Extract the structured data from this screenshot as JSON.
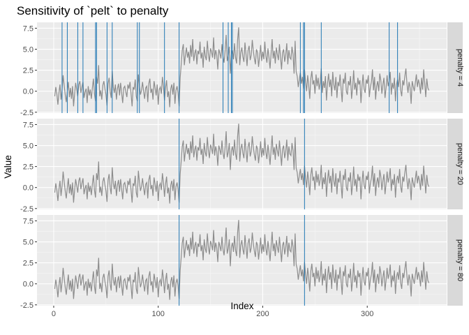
{
  "chart_data": {
    "type": "line",
    "title": "Sensitivity of `pelt` to penalty",
    "xlabel": "Index",
    "ylabel": "Value",
    "xlim": [
      -16,
      376
    ],
    "ylim": [
      -2.6,
      8.2
    ],
    "x_ticks": [
      0,
      100,
      200,
      300
    ],
    "y_ticks": [
      -2.5,
      0.0,
      2.5,
      5.0,
      7.5
    ],
    "y_tick_labels": [
      "-2.5",
      "0.0",
      "2.5",
      "5.0",
      "7.5"
    ],
    "grid": true,
    "series": [
      {
        "x_start": 1,
        "x_step": 1,
        "color": "#8c8c8c",
        "values": [
          -0.6,
          0.5,
          -0.3,
          -1.6,
          -0.2,
          0.8,
          -1.0,
          0.2,
          1.9,
          0.7,
          -0.4,
          -1.3,
          0.0,
          1.1,
          -0.7,
          0.4,
          -0.9,
          0.6,
          -1.8,
          -0.3,
          1.0,
          0.2,
          -0.6,
          0.8,
          1.2,
          -0.2,
          0.5,
          1.1,
          -0.8,
          -0.1,
          0.3,
          -1.4,
          0.6,
          -0.5,
          0.2,
          -0.9,
          0.4,
          1.5,
          -0.3,
          -1.2,
          1.7,
          0.9,
          3.1,
          -0.6,
          0.1,
          -1.0,
          0.7,
          1.2,
          0.3,
          -0.4,
          -1.7,
          0.9,
          1.6,
          0.0,
          -0.8,
          2.4,
          0.5,
          -0.2,
          0.8,
          -1.0,
          0.3,
          0.9,
          -0.5,
          1.0,
          -0.2,
          -1.4,
          0.4,
          0.6,
          -0.1,
          -0.7,
          0.8,
          0.3,
          1.1,
          -0.3,
          -1.8,
          0.5,
          0.2,
          1.4,
          -0.6,
          -1.2,
          2.0,
          0.7,
          -0.4,
          0.1,
          1.1,
          0.0,
          -0.9,
          0.4,
          0.6,
          -1.3,
          0.9,
          1.5,
          -0.2,
          0.3,
          -1.0,
          1.2,
          0.4,
          -0.5,
          0.8,
          -1.6,
          0.2,
          0.5,
          -0.3,
          1.7,
          0.6,
          -1.1,
          0.4,
          1.3,
          -0.7,
          0.0,
          -1.9,
          0.3,
          0.8,
          -0.4,
          1.0,
          -1.5,
          0.1,
          0.6,
          -0.2,
          -1.8,
          1.6,
          3.2,
          4.9,
          5.6,
          3.1,
          4.3,
          5.2,
          4.0,
          4.7,
          3.3,
          5.5,
          4.1,
          6.2,
          3.6,
          4.5,
          5.0,
          3.2,
          4.8,
          4.4,
          5.9,
          3.9,
          4.6,
          2.8,
          5.3,
          4.2,
          3.7,
          6.0,
          4.4,
          3.5,
          5.1,
          4.7,
          4.0,
          6.4,
          3.8,
          4.9,
          4.3,
          2.6,
          5.0,
          4.5,
          3.9,
          5.6,
          4.1,
          3.4,
          4.8,
          6.7,
          3.6,
          4.2,
          5.3,
          2.1,
          4.4,
          4.9,
          3.8,
          5.7,
          4.0,
          3.3,
          6.2,
          7.6,
          3.1,
          4.6,
          5.2,
          4.1,
          3.5,
          5.8,
          4.4,
          3.0,
          4.9,
          5.4,
          3.7,
          4.3,
          6.1,
          4.8,
          3.9,
          3.2,
          5.0,
          4.6,
          2.9,
          4.1,
          5.5,
          3.6,
          4.7,
          3.8,
          5.9,
          4.2,
          3.4,
          5.1,
          4.0,
          2.7,
          4.5,
          6.2,
          3.9,
          4.8,
          3.3,
          5.2,
          4.4,
          3.7,
          5.6,
          4.1,
          2.6,
          4.6,
          5.0,
          3.5,
          4.3,
          5.7,
          3.2,
          4.9,
          4.0,
          3.8,
          5.3,
          4.4,
          2.1,
          6.0,
          2.3,
          1.8,
          0.5,
          1.4,
          2.2,
          0.9,
          1.7,
          0.3,
          2.6,
          1.1,
          0.0,
          1.9,
          0.7,
          -0.9,
          1.5,
          2.4,
          0.8,
          1.3,
          -0.3,
          2.0,
          0.6,
          1.6,
          0.2,
          1.0,
          2.7,
          -0.2,
          1.2,
          0.4,
          1.8,
          -1.1,
          0.9,
          2.1,
          0.5,
          1.4,
          -0.6,
          2.3,
          0.8,
          0.1,
          1.7,
          -0.8,
          1.1,
          0.6,
          2.0,
          0.3,
          -1.3,
          1.5,
          0.9,
          2.2,
          0.0,
          -0.4,
          1.2,
          0.7,
          1.8,
          -0.9,
          0.4,
          2.5,
          0.2,
          1.0,
          -0.5,
          1.6,
          0.8,
          1.3,
          -1.4,
          0.6,
          2.0,
          0.3,
          -0.2,
          1.4,
          0.9,
          1.9,
          -0.7,
          0.5,
          1.1,
          2.6,
          0.1,
          1.7,
          -1.0,
          0.6,
          1.2,
          0.0,
          2.1,
          1.3,
          -0.3,
          0.8,
          1.6,
          -0.8,
          0.4,
          1.9,
          0.6,
          1.2,
          2.3,
          -0.4,
          1.0,
          0.3,
          1.6,
          -1.2,
          0.8,
          1.4,
          0.5,
          2.2,
          0.1,
          -0.6,
          1.3,
          0.7,
          1.8,
          2.7,
          0.9,
          -0.2,
          1.1,
          0.4,
          -1.5,
          1.2,
          0.6,
          0.0,
          1.0,
          2.0,
          0.5,
          1.4,
          0.8,
          -0.3,
          1.6,
          0.2,
          2.6,
          1.0,
          -0.7,
          1.5,
          0.4,
          0.1
        ]
      }
    ],
    "panels": [
      {
        "label": "penalty = 4",
        "changepoints": [
          8,
          13,
          23,
          28,
          40,
          41,
          51,
          56,
          80,
          82,
          106,
          120,
          162,
          167,
          170,
          171,
          236,
          239,
          240,
          256,
          321,
          329
        ]
      },
      {
        "label": "penalty = 20",
        "changepoints": [
          120,
          240
        ]
      },
      {
        "label": "penalty = 80",
        "changepoints": [
          120,
          240
        ]
      }
    ],
    "changepoint_color": "#1f77b4"
  }
}
